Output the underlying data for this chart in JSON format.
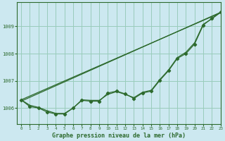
{
  "background_color": "#cce8f0",
  "grid_color": "#99ccbb",
  "line_color": "#2d6a2d",
  "xlabel": "Graphe pression niveau de la mer (hPa)",
  "xlim": [
    -0.5,
    23
  ],
  "ylim": [
    1005.4,
    1009.9
  ],
  "yticks": [
    1006,
    1007,
    1008,
    1009
  ],
  "xticks": [
    0,
    1,
    2,
    3,
    4,
    5,
    6,
    7,
    8,
    9,
    10,
    11,
    12,
    13,
    14,
    15,
    16,
    17,
    18,
    19,
    20,
    21,
    22,
    23
  ],
  "line1_x": [
    0,
    23
  ],
  "line1_y": [
    1006.3,
    1009.5
  ],
  "line2_x": [
    0,
    23
  ],
  "line2_y": [
    1006.25,
    1009.52
  ],
  "series_marked_x": [
    0,
    1,
    2,
    3,
    4,
    5,
    6,
    7,
    8,
    9,
    10,
    11,
    12,
    13,
    14,
    15,
    16,
    17,
    18,
    19,
    20,
    21,
    22,
    23
  ],
  "series_marked_y": [
    1006.3,
    1006.05,
    1006.0,
    1005.85,
    1005.78,
    1005.78,
    1006.0,
    1006.28,
    1006.25,
    1006.25,
    1006.55,
    1006.62,
    1006.52,
    1006.35,
    1006.55,
    1006.62,
    1007.02,
    1007.37,
    1007.82,
    1008.0,
    1008.35,
    1009.05,
    1009.3,
    1009.52
  ],
  "series_smooth_x": [
    0,
    1,
    2,
    3,
    4,
    5,
    6,
    7,
    8,
    9,
    10,
    11,
    12,
    13,
    14,
    15,
    16,
    17,
    18,
    19,
    20,
    21,
    22,
    23
  ],
  "series_smooth_y": [
    1006.3,
    1006.1,
    1006.02,
    1005.9,
    1005.8,
    1005.8,
    1006.0,
    1006.3,
    1006.28,
    1006.28,
    1006.5,
    1006.6,
    1006.5,
    1006.38,
    1006.58,
    1006.65,
    1007.05,
    1007.4,
    1007.85,
    1008.05,
    1008.4,
    1009.08,
    1009.28,
    1009.52
  ]
}
